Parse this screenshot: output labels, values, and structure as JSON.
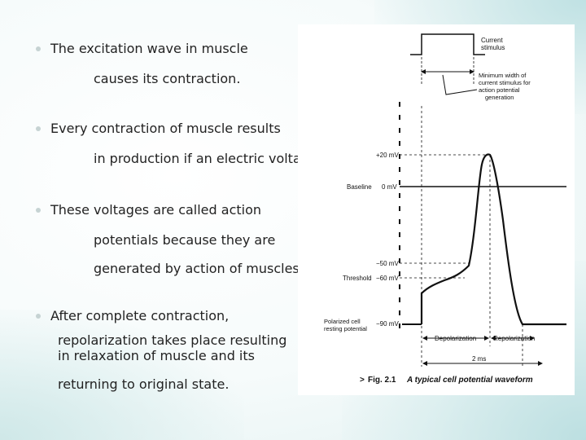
{
  "bullets": [
    {
      "lines": [
        "The excitation wave in muscle",
        "causes its contraction."
      ]
    },
    {
      "lines": [
        "Every contraction of muscle results",
        "in production if an electric voltage."
      ]
    },
    {
      "lines": [
        "These voltages are called action",
        "potentials because they are",
        "generated by action of muscles."
      ]
    },
    {
      "lines": [
        "After complete contraction,",
        "repolarization takes place resulting",
        "in relaxation of muscle and its",
        "returning to original state."
      ]
    }
  ],
  "figure": {
    "stimulus_label": [
      "Current",
      "stimulus"
    ],
    "min_width_label": [
      "Minimum width of",
      "current stimulus for",
      "action potential",
      "generation"
    ],
    "voltages": {
      "plus20": "+20 mV",
      "zero": "0 mV",
      "minus50": "−50 mV",
      "minus60": "−60 mV",
      "minus90": "−90 mV"
    },
    "baseline_label": "Baseline",
    "threshold_label": "Threshold",
    "polarized_label": [
      "Polarized cell",
      "resting potential"
    ],
    "depolarization_label": "Depolarization",
    "repolarization_label": "Repolarization",
    "duration_label": "2 ms",
    "fig_number": "Fig. 2.1",
    "caption": "A typical cell potential waveform",
    "caption_marker": ">"
  }
}
